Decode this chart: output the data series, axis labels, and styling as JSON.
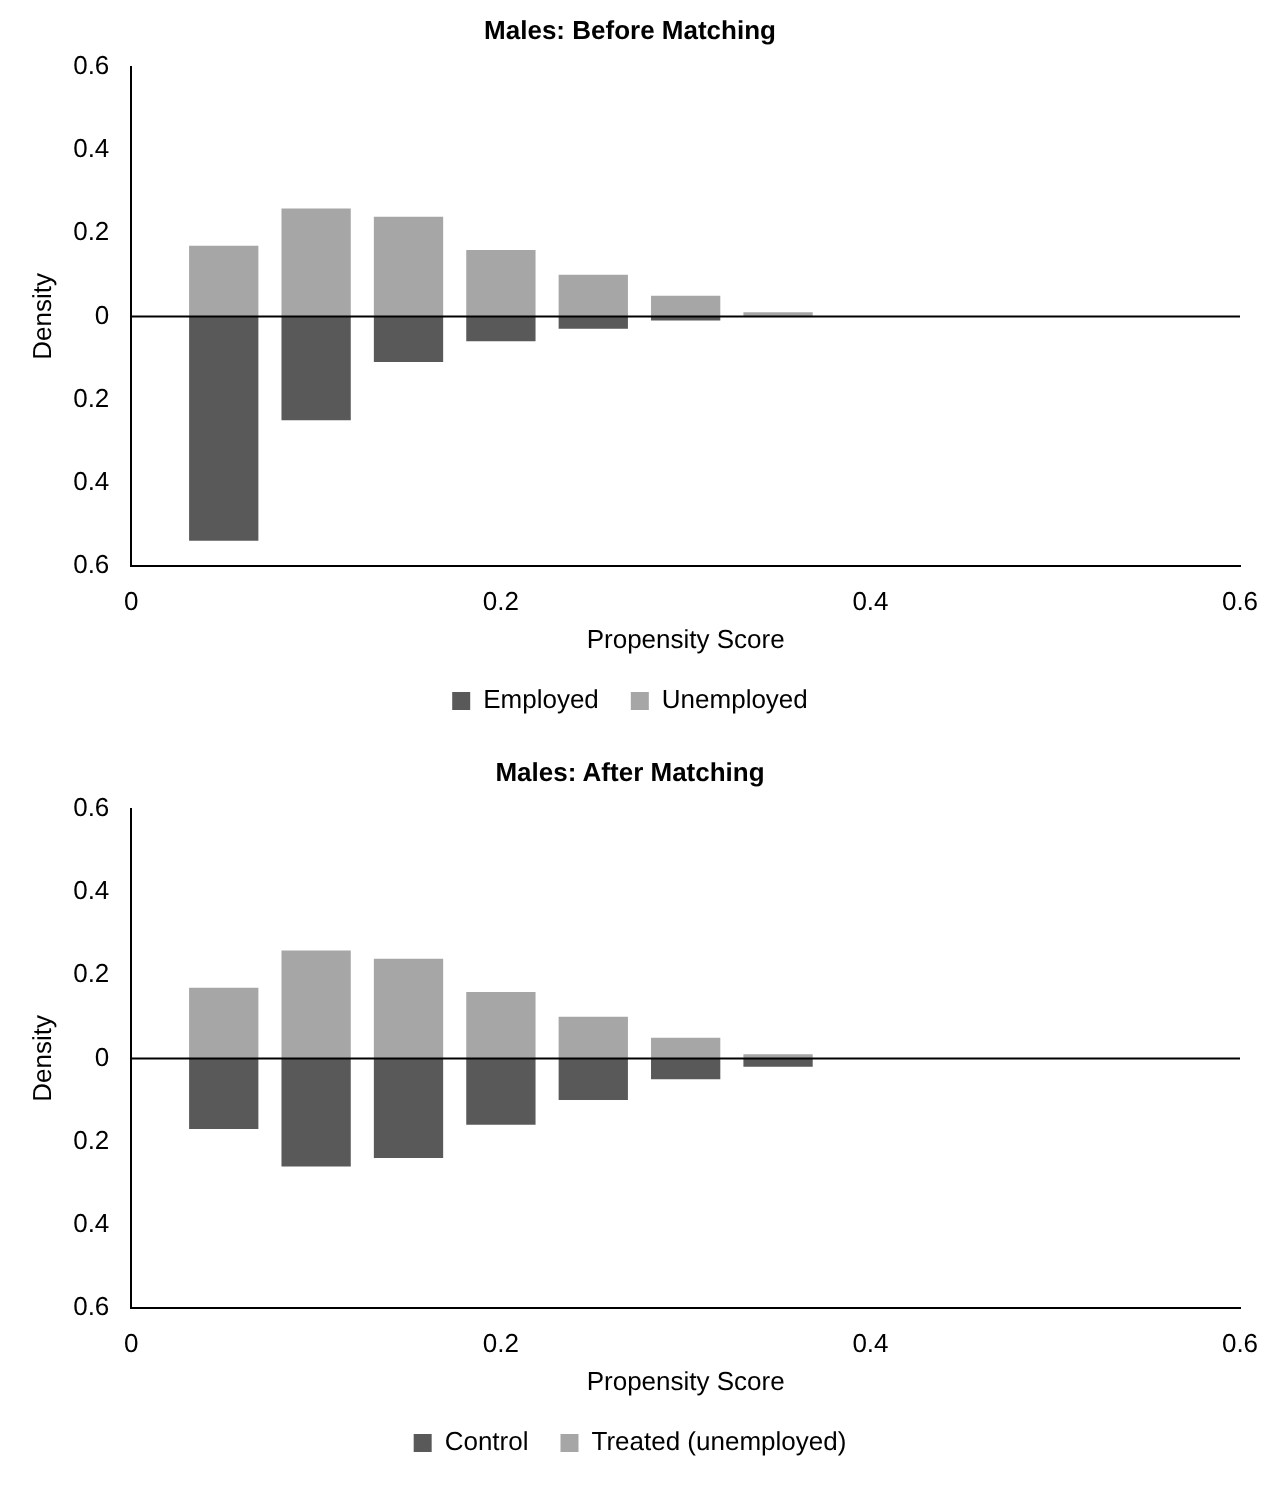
{
  "chart_data": [
    {
      "type": "bar",
      "title": "Males: Before Matching",
      "xlabel": "Propensity Score",
      "ylabel": "Density",
      "stacked": true,
      "x": [
        0.05,
        0.1,
        0.15,
        0.2,
        0.25,
        0.3,
        0.35,
        0.4,
        0.45,
        0.5
      ],
      "series": [
        {
          "name": "Employed",
          "color": "#595959",
          "values": [
            -0.54,
            -0.25,
            -0.11,
            -0.06,
            -0.03,
            -0.01,
            0,
            0,
            0,
            0
          ]
        },
        {
          "name": "Unemployed",
          "color": "#a6a6a6",
          "values": [
            0.17,
            0.26,
            0.24,
            0.16,
            0.1,
            0.05,
            0.01,
            0,
            0,
            0
          ]
        }
      ],
      "xlim": [
        0,
        0.6
      ],
      "xticks": [
        0,
        0.2,
        0.4,
        0.6
      ],
      "ylim": [
        -0.6,
        0.6
      ],
      "yticks": [
        {
          "value": -0.6,
          "label": "0.6"
        },
        {
          "value": -0.4,
          "label": "0.4"
        },
        {
          "value": -0.2,
          "label": "0.2"
        },
        0,
        0.2,
        0.4,
        0.6
      ],
      "ref_lines": [
        {
          "axis": "y",
          "value": 0,
          "color": "#000000"
        }
      ],
      "grid": false,
      "legend": "bottom"
    },
    {
      "type": "bar",
      "title": "Males: After Matching",
      "xlabel": "Propensity Score",
      "ylabel": "Density",
      "stacked": true,
      "x": [
        0.05,
        0.1,
        0.15,
        0.2,
        0.25,
        0.3,
        0.35,
        0.4,
        0.45,
        0.5
      ],
      "series": [
        {
          "name": "Control",
          "color": "#595959",
          "values": [
            -0.17,
            -0.26,
            -0.24,
            -0.16,
            -0.1,
            -0.05,
            -0.02,
            0,
            0,
            0
          ]
        },
        {
          "name": "Treated (unemployed)",
          "color": "#a6a6a6",
          "values": [
            0.17,
            0.26,
            0.24,
            0.16,
            0.1,
            0.05,
            0.01,
            0,
            0,
            0
          ]
        }
      ],
      "xlim": [
        0,
        0.6
      ],
      "xticks": [
        0,
        0.2,
        0.4,
        0.6
      ],
      "ylim": [
        -0.6,
        0.6
      ],
      "yticks": [
        {
          "value": -0.6,
          "label": "0.6"
        },
        {
          "value": -0.4,
          "label": "0.4"
        },
        {
          "value": -0.2,
          "label": "0.2"
        },
        0,
        0.2,
        0.4,
        0.6
      ],
      "ref_lines": [
        {
          "axis": "y",
          "value": 0,
          "color": "#000000"
        }
      ],
      "grid": false,
      "legend": "bottom"
    }
  ]
}
